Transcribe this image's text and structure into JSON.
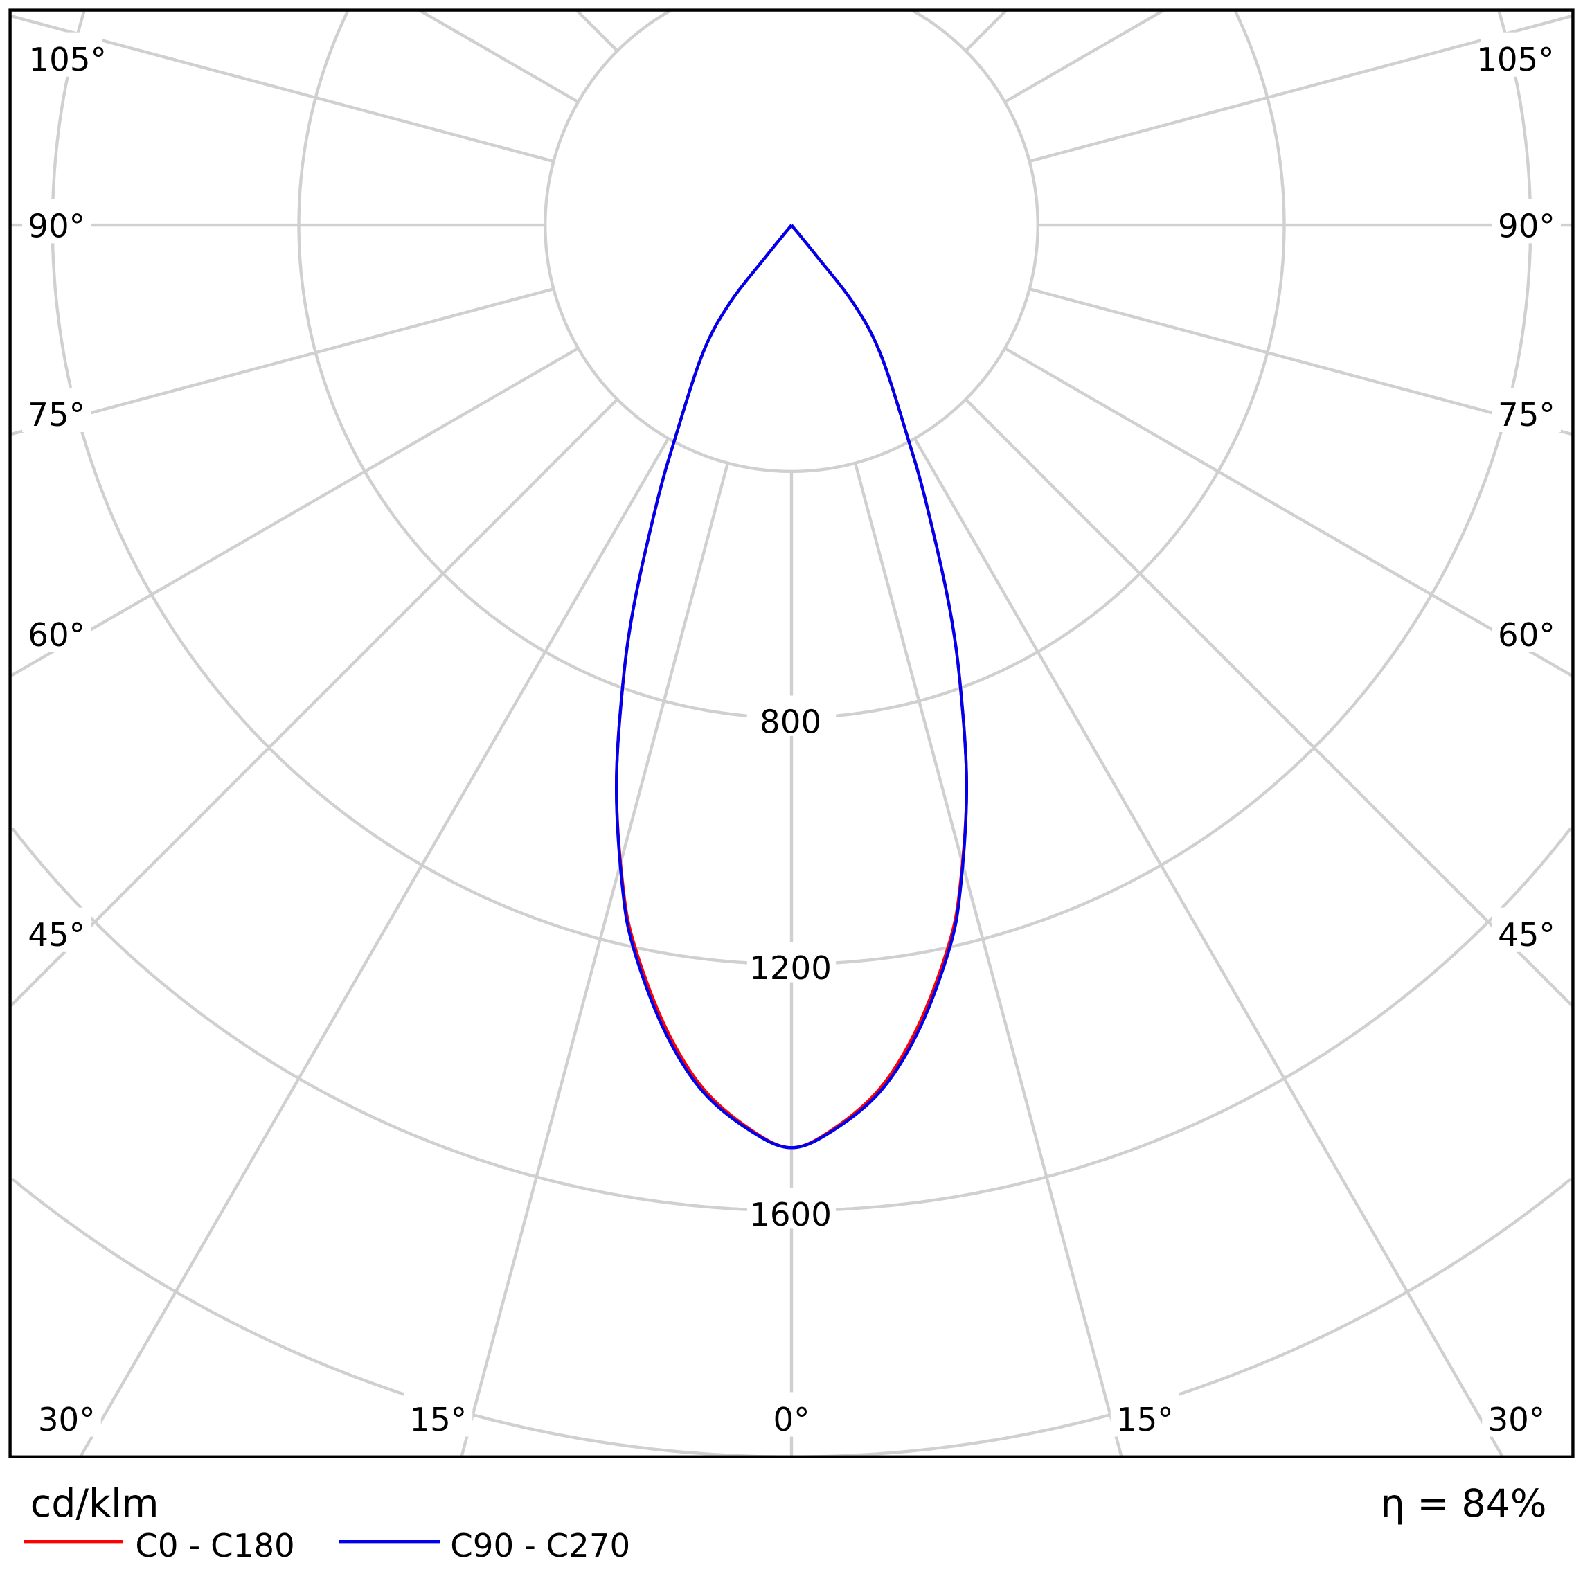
{
  "chart_data": {
    "type": "polar",
    "unit_label": "cd/klm",
    "efficiency_label": "η = 84%",
    "radial_ticks": [
      400,
      800,
      1200,
      1600,
      2000
    ],
    "radial_tick_labels": [
      "800",
      "1200",
      "1600"
    ],
    "angle_step": 15,
    "angle_labels": [
      "105°",
      "90°",
      "75°",
      "60°",
      "45°",
      "30°",
      "15°",
      "0°"
    ],
    "grid": true,
    "legend_placement": "bottom-left",
    "series": [
      {
        "name": "C0 - C180",
        "color": "#ff0000",
        "angles": [
          0,
          2.6,
          5.9,
          9.0,
          12.3,
          14.3,
          17.3,
          20.1,
          22.5,
          25.8,
          28.5,
          34.7,
          38.4,
          39.1,
          90
        ],
        "values": [
          1498,
          1470,
          1408,
          1316,
          1197,
          1108,
          956,
          798,
          669,
          504,
          399,
          253,
          161,
          68,
          0
        ]
      },
      {
        "name": "C90 - C270",
        "color": "#0000ee",
        "angles": [
          0,
          2.6,
          5.9,
          9.0,
          12.3,
          14.3,
          17.3,
          20.1,
          22.5,
          25.8,
          28.5,
          34.7,
          38.4,
          39.1,
          90
        ],
        "values": [
          1498,
          1472,
          1413,
          1323,
          1203,
          1111,
          956,
          798,
          669,
          504,
          399,
          253,
          161,
          68,
          0
        ]
      }
    ]
  }
}
